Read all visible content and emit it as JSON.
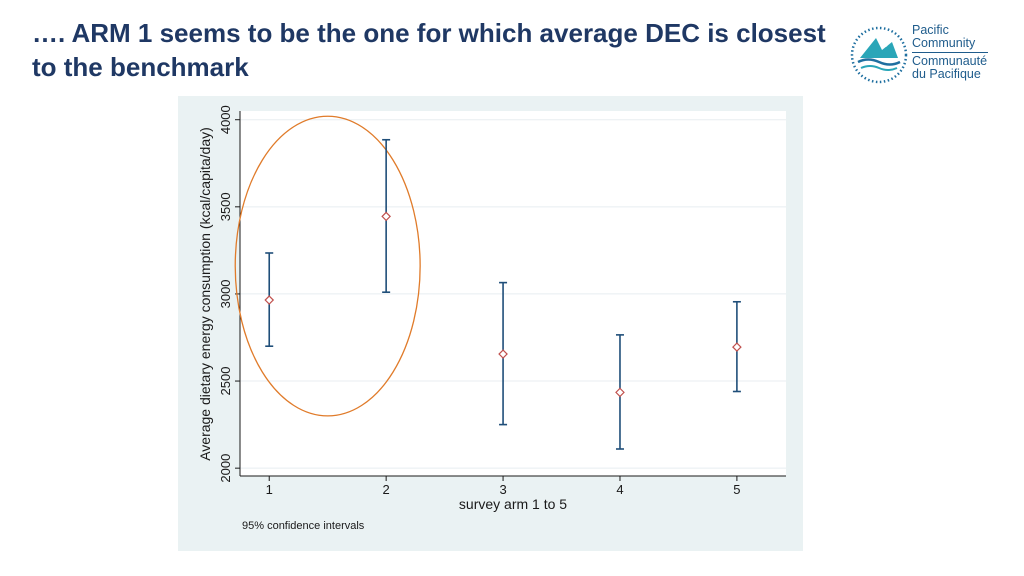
{
  "slide": {
    "title": "…. ARM 1 seems to be the one for which average DEC is closest to the benchmark"
  },
  "logo": {
    "icon": "pacific-community-emblem",
    "line1": "Pacific",
    "line2": "Community",
    "line3": "Communauté",
    "line4": "du Pacifique",
    "color": "#1f5c8c"
  },
  "chart_data": {
    "type": "scatter",
    "subtype": "mean-with-95ci-error-bars",
    "xlabel": "survey arm 1 to 5",
    "ylabel": "Average dietary energy consumption (kcal/capita/day)",
    "x_ticks": [
      "1",
      "2",
      "3",
      "4",
      "5"
    ],
    "y_ticks": [
      "2000",
      "2500",
      "3000",
      "3500",
      "4000"
    ],
    "xlim": [
      0.75,
      5.42
    ],
    "ylim": [
      1955,
      4050
    ],
    "grid": true,
    "note": "95% confidence intervals",
    "points": [
      {
        "x": 1,
        "mean": 2965,
        "lower": 2700,
        "upper": 3235
      },
      {
        "x": 2,
        "mean": 3445,
        "lower": 3010,
        "upper": 3885
      },
      {
        "x": 3,
        "mean": 2655,
        "lower": 2250,
        "upper": 3065
      },
      {
        "x": 4,
        "mean": 2435,
        "lower": 2110,
        "upper": 2765
      },
      {
        "x": 5,
        "mean": 2695,
        "lower": 2440,
        "upper": 2955
      }
    ],
    "highlight": {
      "shape": "ellipse",
      "around_x": [
        1,
        2
      ],
      "color": "#e07b2a"
    },
    "colors": {
      "ci_bar": "#1f4e79",
      "marker": "#c0504d",
      "grid": "#e8eef0",
      "plot_bg": "#ffffff",
      "panel_bg": "#eaf2f3"
    }
  }
}
